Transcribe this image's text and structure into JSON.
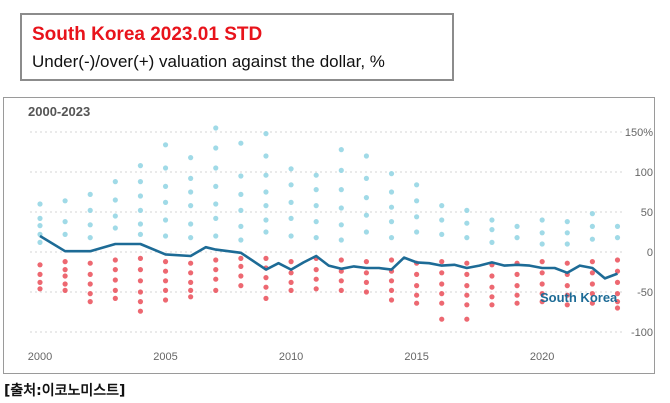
{
  "header": {
    "title": "South Korea 2023.01 STD",
    "subtitle": "Under(-)/over(+) valuation against the dollar, %"
  },
  "period_label": "2000-2023",
  "source_label": "[출처:이코노미스트]",
  "colors": {
    "line": "#1d6b96",
    "positive_dots": "#8fd3e3",
    "negative_dots": "#e8424e",
    "title": "#e8131b"
  },
  "chart_data": {
    "type": "scatter",
    "title": "South Korea 2023.01 STD",
    "subtitle": "Under(-)/over(+) valuation against the dollar, %",
    "xlim": [
      2000,
      2023.1
    ],
    "ylim": [
      -100,
      150
    ],
    "x_ticks": [
      "2000",
      "2005",
      "2010",
      "2015",
      "2020"
    ],
    "y_ticks": [
      "150%",
      "100",
      "50",
      "0",
      "-50",
      "-100"
    ],
    "grid": "horizontal dashed",
    "series": [
      {
        "name": "South Korea",
        "style": "line",
        "x": [
          2000,
          2001,
          2002,
          2003,
          2004,
          2005,
          2006,
          2006.6,
          2007,
          2008,
          2009,
          2009.5,
          2010,
          2010.5,
          2011,
          2011.5,
          2012,
          2012.5,
          2013,
          2013.5,
          2014,
          2014.5,
          2015,
          2015.5,
          2016,
          2016.5,
          2017,
          2017.5,
          2018,
          2018.5,
          2019,
          2019.5,
          2020,
          2020.5,
          2021,
          2021.5,
          2022,
          2022.5,
          2023
        ],
        "values": [
          20,
          1,
          1,
          10,
          10,
          -3,
          -5,
          6,
          3,
          -1,
          -22,
          -14,
          -22,
          -13,
          -5,
          -17,
          -21,
          -18,
          -20,
          -20,
          -22,
          -7,
          -13,
          -14,
          -17,
          -16,
          -20,
          -17,
          -13,
          -17,
          -16,
          -17,
          -20,
          -20,
          -26,
          -17,
          -20,
          -33,
          -27
        ]
      },
      {
        "name": "",
        "style": "dots",
        "description_free": true,
        "points": [
          [
            2000,
            60
          ],
          [
            2000,
            42
          ],
          [
            2000,
            33
          ],
          [
            2000,
            22
          ],
          [
            2000,
            12
          ],
          [
            2000,
            -16
          ],
          [
            2000,
            -28
          ],
          [
            2000,
            -38
          ],
          [
            2000,
            -46
          ],
          [
            2001,
            64
          ],
          [
            2001,
            38
          ],
          [
            2001,
            22
          ],
          [
            2001,
            -12
          ],
          [
            2001,
            -22
          ],
          [
            2001,
            -30
          ],
          [
            2001,
            -40
          ],
          [
            2001,
            -48
          ],
          [
            2002,
            72
          ],
          [
            2002,
            52
          ],
          [
            2002,
            34
          ],
          [
            2002,
            18
          ],
          [
            2002,
            -14
          ],
          [
            2002,
            -28
          ],
          [
            2002,
            -40
          ],
          [
            2002,
            -52
          ],
          [
            2002,
            -62
          ],
          [
            2003,
            88
          ],
          [
            2003,
            65
          ],
          [
            2003,
            45
          ],
          [
            2003,
            30
          ],
          [
            2003,
            -10
          ],
          [
            2003,
            -22
          ],
          [
            2003,
            -35
          ],
          [
            2003,
            -48
          ],
          [
            2003,
            -58
          ],
          [
            2004,
            108
          ],
          [
            2004,
            88
          ],
          [
            2004,
            70
          ],
          [
            2004,
            52
          ],
          [
            2004,
            35
          ],
          [
            2004,
            22
          ],
          [
            2004,
            -8
          ],
          [
            2004,
            -22
          ],
          [
            2004,
            -36
          ],
          [
            2004,
            -50
          ],
          [
            2004,
            -62
          ],
          [
            2004,
            -74
          ],
          [
            2005,
            134
          ],
          [
            2005,
            105
          ],
          [
            2005,
            82
          ],
          [
            2005,
            62
          ],
          [
            2005,
            40
          ],
          [
            2005,
            20
          ],
          [
            2005,
            -12
          ],
          [
            2005,
            -24
          ],
          [
            2005,
            -36
          ],
          [
            2005,
            -48
          ],
          [
            2005,
            -60
          ],
          [
            2006,
            118
          ],
          [
            2006,
            92
          ],
          [
            2006,
            75
          ],
          [
            2006,
            58
          ],
          [
            2006,
            35
          ],
          [
            2006,
            18
          ],
          [
            2006,
            -14
          ],
          [
            2006,
            -26
          ],
          [
            2006,
            -38
          ],
          [
            2006,
            -48
          ],
          [
            2006,
            -56
          ],
          [
            2007,
            155
          ],
          [
            2007,
            130
          ],
          [
            2007,
            105
          ],
          [
            2007,
            82
          ],
          [
            2007,
            60
          ],
          [
            2007,
            42
          ],
          [
            2007,
            20
          ],
          [
            2007,
            -10
          ],
          [
            2007,
            -22
          ],
          [
            2007,
            -34
          ],
          [
            2007,
            -48
          ],
          [
            2008,
            136
          ],
          [
            2008,
            95
          ],
          [
            2008,
            72
          ],
          [
            2008,
            52
          ],
          [
            2008,
            32
          ],
          [
            2008,
            15
          ],
          [
            2008,
            -8
          ],
          [
            2008,
            -18
          ],
          [
            2008,
            -30
          ],
          [
            2008,
            -42
          ],
          [
            2009,
            148
          ],
          [
            2009,
            120
          ],
          [
            2009,
            96
          ],
          [
            2009,
            75
          ],
          [
            2009,
            58
          ],
          [
            2009,
            40
          ],
          [
            2009,
            25
          ],
          [
            2009,
            -8
          ],
          [
            2009,
            -20
          ],
          [
            2009,
            -32
          ],
          [
            2009,
            -44
          ],
          [
            2009,
            -58
          ],
          [
            2010,
            104
          ],
          [
            2010,
            84
          ],
          [
            2010,
            62
          ],
          [
            2010,
            42
          ],
          [
            2010,
            20
          ],
          [
            2010,
            -12
          ],
          [
            2010,
            -26
          ],
          [
            2010,
            -38
          ],
          [
            2010,
            -48
          ],
          [
            2011,
            96
          ],
          [
            2011,
            78
          ],
          [
            2011,
            58
          ],
          [
            2011,
            38
          ],
          [
            2011,
            18
          ],
          [
            2011,
            -8
          ],
          [
            2011,
            -22
          ],
          [
            2011,
            -34
          ],
          [
            2011,
            -46
          ],
          [
            2012,
            128
          ],
          [
            2012,
            102
          ],
          [
            2012,
            78
          ],
          [
            2012,
            55
          ],
          [
            2012,
            34
          ],
          [
            2012,
            15
          ],
          [
            2012,
            -10
          ],
          [
            2012,
            -24
          ],
          [
            2012,
            -36
          ],
          [
            2012,
            -48
          ],
          [
            2013,
            120
          ],
          [
            2013,
            92
          ],
          [
            2013,
            68
          ],
          [
            2013,
            46
          ],
          [
            2013,
            25
          ],
          [
            2013,
            -12
          ],
          [
            2013,
            -26
          ],
          [
            2013,
            -38
          ],
          [
            2013,
            -50
          ],
          [
            2014,
            98
          ],
          [
            2014,
            75
          ],
          [
            2014,
            56
          ],
          [
            2014,
            38
          ],
          [
            2014,
            18
          ],
          [
            2014,
            -10
          ],
          [
            2014,
            -24
          ],
          [
            2014,
            -36
          ],
          [
            2014,
            -48
          ],
          [
            2014,
            -60
          ],
          [
            2015,
            84
          ],
          [
            2015,
            64
          ],
          [
            2015,
            44
          ],
          [
            2015,
            25
          ],
          [
            2015,
            -14
          ],
          [
            2015,
            -28
          ],
          [
            2015,
            -42
          ],
          [
            2015,
            -54
          ],
          [
            2015,
            -64
          ],
          [
            2016,
            58
          ],
          [
            2016,
            40
          ],
          [
            2016,
            22
          ],
          [
            2016,
            -12
          ],
          [
            2016,
            -26
          ],
          [
            2016,
            -40
          ],
          [
            2016,
            -52
          ],
          [
            2016,
            -64
          ],
          [
            2016,
            -84
          ],
          [
            2017,
            52
          ],
          [
            2017,
            36
          ],
          [
            2017,
            18
          ],
          [
            2017,
            -14
          ],
          [
            2017,
            -28
          ],
          [
            2017,
            -42
          ],
          [
            2017,
            -54
          ],
          [
            2017,
            -66
          ],
          [
            2017,
            -84
          ],
          [
            2018,
            40
          ],
          [
            2018,
            28
          ],
          [
            2018,
            12
          ],
          [
            2018,
            -16
          ],
          [
            2018,
            -30
          ],
          [
            2018,
            -44
          ],
          [
            2018,
            -56
          ],
          [
            2018,
            -66
          ],
          [
            2019,
            32
          ],
          [
            2019,
            18
          ],
          [
            2019,
            -14
          ],
          [
            2019,
            -28
          ],
          [
            2019,
            -42
          ],
          [
            2019,
            -54
          ],
          [
            2019,
            -64
          ],
          [
            2020,
            40
          ],
          [
            2020,
            24
          ],
          [
            2020,
            10
          ],
          [
            2020,
            -12
          ],
          [
            2020,
            -26
          ],
          [
            2020,
            -40
          ],
          [
            2020,
            -52
          ],
          [
            2020,
            -62
          ],
          [
            2021,
            38
          ],
          [
            2021,
            24
          ],
          [
            2021,
            10
          ],
          [
            2021,
            -14
          ],
          [
            2021,
            -28
          ],
          [
            2021,
            -42
          ],
          [
            2021,
            -54
          ],
          [
            2021,
            -66
          ],
          [
            2022,
            48
          ],
          [
            2022,
            32
          ],
          [
            2022,
            16
          ],
          [
            2022,
            -12
          ],
          [
            2022,
            -26
          ],
          [
            2022,
            -40
          ],
          [
            2022,
            -52
          ],
          [
            2022,
            -64
          ],
          [
            2023,
            32
          ],
          [
            2023,
            18
          ],
          [
            2023,
            -10
          ],
          [
            2023,
            -24
          ],
          [
            2023,
            -38
          ],
          [
            2023,
            -52
          ],
          [
            2023,
            -62
          ],
          [
            2023,
            -70
          ]
        ]
      }
    ],
    "line_label": "South Korea"
  }
}
